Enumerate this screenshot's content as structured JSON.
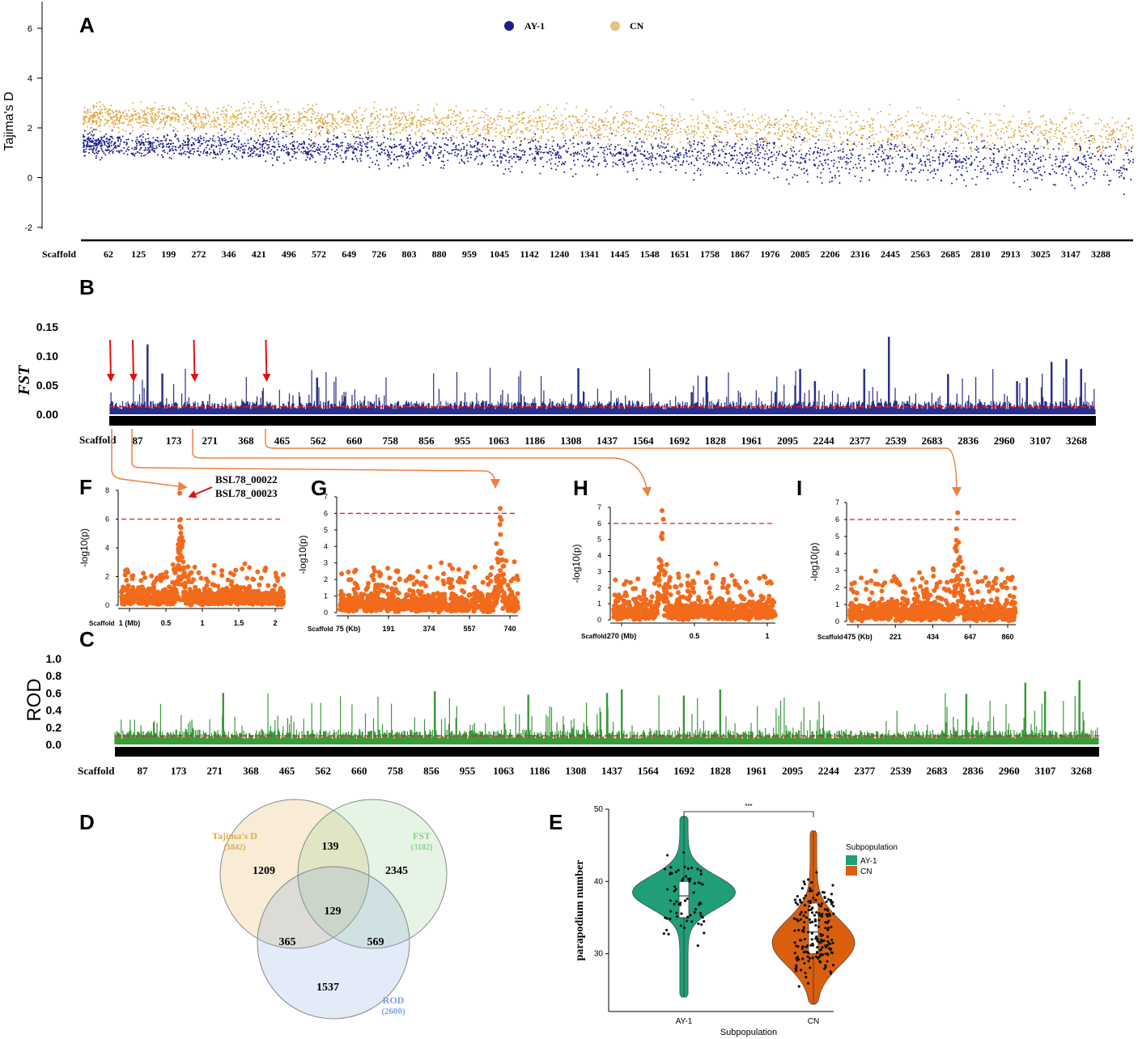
{
  "chart_data": [
    {
      "id": "A",
      "panel_label": "A",
      "type": "scatter",
      "ylabel": "Tajima's D",
      "xlabel": "Scaffold",
      "ylim": [
        -2.5,
        6.5
      ],
      "yticks": [
        "6",
        "4",
        "2",
        "0",
        "-2"
      ],
      "legend": [
        {
          "name": "AY-1",
          "color": "#1e1e8c"
        },
        {
          "name": "CN",
          "color": "#e0aa4a"
        }
      ],
      "x_tick_labels": [
        "62",
        "125",
        "199",
        "272",
        "346",
        "421",
        "496",
        "572",
        "649",
        "726",
        "803",
        "880",
        "959",
        "1045",
        "1142",
        "1240",
        "1341",
        "1445",
        "1548",
        "1651",
        "1758",
        "1867",
        "1976",
        "2085",
        "2206",
        "2316",
        "2445",
        "2563",
        "2685",
        "2810",
        "2913",
        "3025",
        "3147",
        "3288"
      ],
      "series": [
        {
          "name": "AY-1",
          "trend_start": 1.35,
          "trend_end": 0.55
        },
        {
          "name": "CN",
          "trend_start": 2.45,
          "trend_end": 1.7
        }
      ]
    },
    {
      "id": "B",
      "panel_label": "B",
      "type": "bar",
      "ylabel": "FST",
      "xlabel": "Scaffold",
      "ylim": [
        0,
        0.15
      ],
      "yticks": [
        "0.15",
        "0.10",
        "0.05",
        "0.00"
      ],
      "threshold": 0.013,
      "x_tick_labels": [
        "87",
        "173",
        "271",
        "368",
        "465",
        "562",
        "660",
        "758",
        "856",
        "955",
        "1063",
        "1186",
        "1308",
        "1437",
        "1564",
        "1692",
        "1828",
        "1961",
        "2095",
        "2244",
        "2377",
        "2539",
        "2683",
        "2836",
        "2960",
        "3107",
        "3268"
      ],
      "peaks": [
        {
          "pos": 0.038,
          "value": 0.12
        },
        {
          "pos": 0.053,
          "value": 0.07
        },
        {
          "pos": 0.21,
          "value": 0.063
        },
        {
          "pos": 0.475,
          "value": 0.079
        },
        {
          "pos": 0.59,
          "value": 0.038
        },
        {
          "pos": 0.675,
          "value": 0.038
        },
        {
          "pos": 0.605,
          "value": 0.065
        },
        {
          "pos": 0.7,
          "value": 0.078
        },
        {
          "pos": 0.715,
          "value": 0.057
        },
        {
          "pos": 0.765,
          "value": 0.078
        },
        {
          "pos": 0.79,
          "value": 0.133
        },
        {
          "pos": 0.85,
          "value": 0.069
        },
        {
          "pos": 0.92,
          "value": 0.057
        },
        {
          "pos": 0.93,
          "value": 0.063
        },
        {
          "pos": 0.955,
          "value": 0.09
        },
        {
          "pos": 0.97,
          "value": 0.095
        },
        {
          "pos": 0.985,
          "value": 0.078
        }
      ],
      "arrow_positions": [
        0.0,
        0.023,
        0.085,
        0.158
      ]
    },
    {
      "id": "C",
      "panel_label": "C",
      "type": "bar",
      "ylabel": "ROD",
      "xlabel": "Scaffold",
      "ylim": [
        0,
        1.0
      ],
      "yticks": [
        "1.0",
        "0.8",
        "0.6",
        "0.4",
        "0.2",
        "0.0"
      ],
      "threshold": 0.1,
      "x_tick_labels": [
        "87",
        "173",
        "271",
        "368",
        "465",
        "562",
        "660",
        "758",
        "856",
        "955",
        "1063",
        "1186",
        "1308",
        "1437",
        "1564",
        "1692",
        "1828",
        "1961",
        "2095",
        "2244",
        "2377",
        "2539",
        "2683",
        "2836",
        "2960",
        "3107",
        "3268"
      ],
      "peaks": [
        {
          "pos": 0.11,
          "value": 0.6
        },
        {
          "pos": 0.325,
          "value": 0.62
        },
        {
          "pos": 0.42,
          "value": 0.58
        },
        {
          "pos": 0.5,
          "value": 0.6
        },
        {
          "pos": 0.515,
          "value": 0.64
        },
        {
          "pos": 0.578,
          "value": 0.57
        },
        {
          "pos": 0.615,
          "value": 0.64
        },
        {
          "pos": 0.865,
          "value": 0.59
        },
        {
          "pos": 0.925,
          "value": 0.72
        },
        {
          "pos": 0.945,
          "value": 0.62
        },
        {
          "pos": 0.98,
          "value": 0.75
        }
      ]
    },
    {
      "id": "F",
      "panel_label": "F",
      "type": "scatter",
      "ylabel": "-log10(p)",
      "ylim": [
        0,
        8
      ],
      "yticks": [
        "8",
        "6",
        "4",
        "2",
        "0"
      ],
      "threshold": 6,
      "x_tick_labels": [
        "1 (Mb)",
        "0.5",
        "1",
        "1.5",
        "2"
      ],
      "x_prefix": "Scaffold",
      "peak_pos": 0.36,
      "peak_value": 7.8,
      "peak_labels": [
        "BSL78_00022",
        "BSL78_00023"
      ]
    },
    {
      "id": "G",
      "panel_label": "G",
      "type": "scatter",
      "ylabel": "-log10(p)",
      "ylim": [
        0,
        7
      ],
      "yticks": [
        "7",
        "6",
        "5",
        "4",
        "3",
        "2",
        "1",
        "0"
      ],
      "threshold": 6,
      "x_tick_labels": [
        "75 (Kb)",
        "191",
        "374",
        "557",
        "740"
      ],
      "x_prefix": "Scaffold",
      "peak_pos": 0.9,
      "peak_value": 6.3
    },
    {
      "id": "H",
      "panel_label": "H",
      "type": "scatter",
      "ylabel": "-log10(p)",
      "ylim": [
        0,
        7
      ],
      "yticks": [
        "7",
        "6",
        "5",
        "4",
        "3",
        "2",
        "1",
        "0"
      ],
      "threshold": 6,
      "x_tick_labels": [
        "270 (Mb)",
        "0.5",
        "1"
      ],
      "x_prefix": "Scaffold",
      "peak_pos": 0.3,
      "peak_value": 6.8
    },
    {
      "id": "I",
      "panel_label": "I",
      "type": "scatter",
      "ylabel": "-log10(p)",
      "ylim": [
        0,
        7
      ],
      "yticks": [
        "7",
        "6",
        "5",
        "4",
        "3",
        "2",
        "1",
        "0"
      ],
      "threshold": 6,
      "x_tick_labels": [
        "475 (Kb)",
        "221",
        "434",
        "647",
        "860"
      ],
      "x_prefix": "Scaffold",
      "peak_pos": 0.65,
      "peak_value": 6.4
    },
    {
      "id": "D",
      "panel_label": "D",
      "type": "venn",
      "sets": [
        {
          "name": "Tajima's D",
          "size": "(1842)",
          "color": "#e0aa4a"
        },
        {
          "name": "FST",
          "size": "(3182)",
          "color": "#8ccf8a"
        },
        {
          "name": "ROD",
          "size": "(2600)",
          "color": "#7f9fe0"
        }
      ],
      "regions": {
        "a_only": "1209",
        "ab": "139",
        "b_only": "2345",
        "abc": "129",
        "ac": "365",
        "bc": "569",
        "c_only": "1537"
      }
    },
    {
      "id": "E",
      "panel_label": "E",
      "type": "violin",
      "ylabel": "parapodium number",
      "xlabel": "Subpopulation",
      "ylim": [
        22,
        50
      ],
      "yticks": [
        "50",
        "40",
        "30"
      ],
      "categories": [
        "AY-1",
        "CN"
      ],
      "significance": "***",
      "legend_title": "Subpopulation",
      "series": [
        {
          "name": "AY-1",
          "color": "#1f9e78",
          "min": 24,
          "q1": 35,
          "median": 38,
          "q3": 40,
          "max": 49
        },
        {
          "name": "CN",
          "color": "#d95f0e",
          "min": 23,
          "q1": 30,
          "median": 33,
          "q3": 37,
          "max": 47
        }
      ]
    }
  ]
}
